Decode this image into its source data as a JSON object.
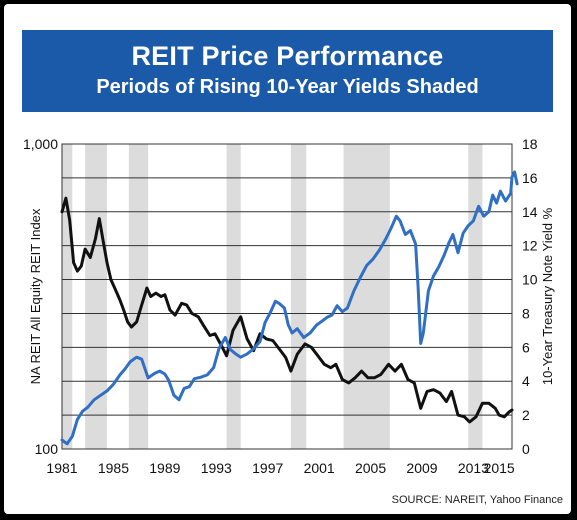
{
  "header": {
    "title": "REIT Price Performance",
    "subtitle": "Periods of Rising 10-Year Yields Shaded"
  },
  "footer": {
    "source": "SOURCE: NAREIT, Yahoo Finance"
  },
  "colors": {
    "title_bg": "#1a5aa8",
    "reit_line": "#111111",
    "yield_line": "#2f6fc4",
    "shade": "#dcdcdc"
  },
  "chart_data": {
    "type": "line",
    "xlim": [
      1981,
      2016
    ],
    "x_ticks": [
      "1981",
      "1985",
      "1989",
      "1993",
      "1997",
      "2001",
      "2005",
      "2009",
      "2013",
      "2015"
    ],
    "y_left": {
      "label": "NA REIT All Equity REIT Index",
      "scale": "log",
      "lim": [
        100,
        1000
      ],
      "tick_labels": [
        "100",
        "1,000"
      ]
    },
    "y_right": {
      "label": "10-Year Treasury Note Yield %",
      "lim": [
        0,
        18
      ],
      "ticks": [
        0,
        2,
        4,
        6,
        8,
        10,
        12,
        14,
        16,
        18
      ]
    },
    "shaded_periods": [
      [
        1981.0,
        1981.8
      ],
      [
        1982.8,
        1984.5
      ],
      [
        1986.2,
        1987.7
      ],
      [
        1993.8,
        1994.9
      ],
      [
        1998.8,
        2000.0
      ],
      [
        2002.9,
        2006.5
      ],
      [
        2012.6,
        2013.7
      ]
    ],
    "series": [
      {
        "name": "10-Year Treasury Note Yield %",
        "axis": "right",
        "points": [
          [
            1981.0,
            14.0
          ],
          [
            1981.3,
            14.8
          ],
          [
            1981.6,
            13.5
          ],
          [
            1981.9,
            11.0
          ],
          [
            1982.2,
            10.5
          ],
          [
            1982.5,
            10.8
          ],
          [
            1982.8,
            11.8
          ],
          [
            1983.2,
            11.3
          ],
          [
            1983.6,
            12.4
          ],
          [
            1983.9,
            13.6
          ],
          [
            1984.2,
            12.3
          ],
          [
            1984.5,
            11.0
          ],
          [
            1984.8,
            10.0
          ],
          [
            1985.1,
            9.5
          ],
          [
            1985.5,
            8.8
          ],
          [
            1985.8,
            8.2
          ],
          [
            1986.1,
            7.5
          ],
          [
            1986.4,
            7.2
          ],
          [
            1986.8,
            7.5
          ],
          [
            1987.2,
            8.5
          ],
          [
            1987.6,
            9.5
          ],
          [
            1987.9,
            9.0
          ],
          [
            1988.3,
            9.2
          ],
          [
            1988.7,
            9.0
          ],
          [
            1989.0,
            9.1
          ],
          [
            1989.4,
            8.2
          ],
          [
            1989.8,
            7.9
          ],
          [
            1990.3,
            8.6
          ],
          [
            1990.7,
            8.5
          ],
          [
            1991.1,
            8.0
          ],
          [
            1991.6,
            7.8
          ],
          [
            1992.0,
            7.3
          ],
          [
            1992.5,
            6.7
          ],
          [
            1992.9,
            6.8
          ],
          [
            1993.4,
            6.1
          ],
          [
            1993.8,
            5.5
          ],
          [
            1994.3,
            7.0
          ],
          [
            1994.9,
            7.8
          ],
          [
            1995.4,
            6.5
          ],
          [
            1995.9,
            5.8
          ],
          [
            1996.4,
            6.8
          ],
          [
            1996.9,
            6.5
          ],
          [
            1997.4,
            6.4
          ],
          [
            1997.9,
            5.9
          ],
          [
            1998.4,
            5.4
          ],
          [
            1998.8,
            4.6
          ],
          [
            1999.3,
            5.6
          ],
          [
            1999.9,
            6.2
          ],
          [
            2000.4,
            6.0
          ],
          [
            2000.9,
            5.5
          ],
          [
            2001.4,
            5.0
          ],
          [
            2001.9,
            4.8
          ],
          [
            2002.3,
            5.0
          ],
          [
            2002.8,
            4.1
          ],
          [
            2003.3,
            3.9
          ],
          [
            2003.8,
            4.2
          ],
          [
            2004.3,
            4.6
          ],
          [
            2004.8,
            4.2
          ],
          [
            2005.3,
            4.2
          ],
          [
            2005.8,
            4.4
          ],
          [
            2006.4,
            5.0
          ],
          [
            2006.9,
            4.6
          ],
          [
            2007.4,
            5.0
          ],
          [
            2007.9,
            4.1
          ],
          [
            2008.4,
            3.9
          ],
          [
            2008.9,
            2.4
          ],
          [
            2009.4,
            3.4
          ],
          [
            2009.9,
            3.5
          ],
          [
            2010.4,
            3.3
          ],
          [
            2010.9,
            2.8
          ],
          [
            2011.3,
            3.4
          ],
          [
            2011.8,
            2.0
          ],
          [
            2012.3,
            1.9
          ],
          [
            2012.7,
            1.6
          ],
          [
            2013.2,
            1.9
          ],
          [
            2013.7,
            2.7
          ],
          [
            2014.2,
            2.7
          ],
          [
            2014.7,
            2.4
          ],
          [
            2015.0,
            2.0
          ],
          [
            2015.4,
            1.9
          ],
          [
            2015.8,
            2.2
          ],
          [
            2016.0,
            2.3
          ]
        ]
      },
      {
        "name": "NA REIT All Equity REIT Index",
        "axis": "left",
        "points": [
          [
            1981.0,
            107
          ],
          [
            1981.4,
            104
          ],
          [
            1981.8,
            110
          ],
          [
            1982.2,
            125
          ],
          [
            1982.6,
            133
          ],
          [
            1983.0,
            137
          ],
          [
            1983.5,
            145
          ],
          [
            1984.0,
            150
          ],
          [
            1984.5,
            155
          ],
          [
            1985.0,
            163
          ],
          [
            1985.5,
            175
          ],
          [
            1985.9,
            183
          ],
          [
            1986.3,
            193
          ],
          [
            1986.8,
            200
          ],
          [
            1987.2,
            197
          ],
          [
            1987.7,
            171
          ],
          [
            1988.2,
            177
          ],
          [
            1988.6,
            180
          ],
          [
            1989.0,
            176
          ],
          [
            1989.3,
            168
          ],
          [
            1989.7,
            150
          ],
          [
            1990.1,
            145
          ],
          [
            1990.5,
            158
          ],
          [
            1990.9,
            160
          ],
          [
            1991.3,
            170
          ],
          [
            1991.8,
            172
          ],
          [
            1992.3,
            175
          ],
          [
            1992.8,
            185
          ],
          [
            1993.2,
            213
          ],
          [
            1993.7,
            232
          ],
          [
            1994.1,
            212
          ],
          [
            1994.5,
            205
          ],
          [
            1994.9,
            200
          ],
          [
            1995.4,
            205
          ],
          [
            1995.9,
            213
          ],
          [
            1996.4,
            225
          ],
          [
            1996.8,
            260
          ],
          [
            1997.2,
            280
          ],
          [
            1997.6,
            305
          ],
          [
            1997.9,
            300
          ],
          [
            1998.3,
            290
          ],
          [
            1998.6,
            255
          ],
          [
            1998.9,
            240
          ],
          [
            1999.3,
            248
          ],
          [
            1999.8,
            232
          ],
          [
            2000.3,
            240
          ],
          [
            2000.8,
            255
          ],
          [
            2001.2,
            262
          ],
          [
            2001.6,
            270
          ],
          [
            2002.0,
            275
          ],
          [
            2002.4,
            295
          ],
          [
            2002.8,
            282
          ],
          [
            2003.2,
            290
          ],
          [
            2003.7,
            330
          ],
          [
            2004.2,
            365
          ],
          [
            2004.7,
            400
          ],
          [
            2005.2,
            420
          ],
          [
            2005.7,
            450
          ],
          [
            2006.2,
            490
          ],
          [
            2006.6,
            530
          ],
          [
            2007.0,
            580
          ],
          [
            2007.3,
            560
          ],
          [
            2007.7,
            505
          ],
          [
            2008.1,
            520
          ],
          [
            2008.5,
            470
          ],
          [
            2008.7,
            340
          ],
          [
            2008.9,
            222
          ],
          [
            2009.1,
            240
          ],
          [
            2009.5,
            330
          ],
          [
            2009.9,
            370
          ],
          [
            2010.3,
            395
          ],
          [
            2010.7,
            430
          ],
          [
            2011.1,
            475
          ],
          [
            2011.4,
            505
          ],
          [
            2011.8,
            440
          ],
          [
            2012.2,
            510
          ],
          [
            2012.6,
            540
          ],
          [
            2013.0,
            560
          ],
          [
            2013.4,
            625
          ],
          [
            2013.8,
            580
          ],
          [
            2014.2,
            600
          ],
          [
            2014.5,
            680
          ],
          [
            2014.8,
            640
          ],
          [
            2015.1,
            700
          ],
          [
            2015.5,
            650
          ],
          [
            2015.9,
            690
          ],
          [
            2016.0,
            780
          ],
          [
            2016.2,
            810
          ],
          [
            2016.4,
            740
          ]
        ]
      }
    ]
  }
}
